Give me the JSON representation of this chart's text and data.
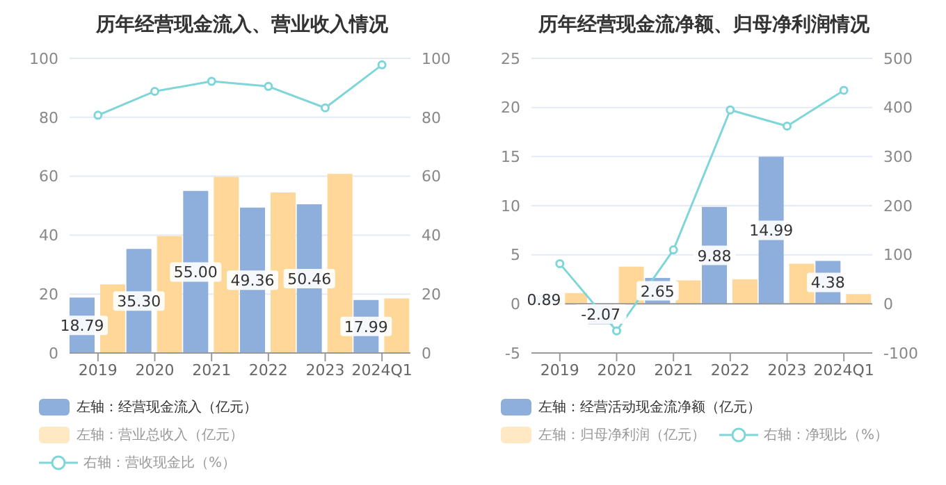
{
  "chart_data": [
    {
      "type": "bar",
      "title": "历年经营现金流入、营业收入情况",
      "categories": [
        "2019",
        "2020",
        "2021",
        "2022",
        "2023",
        "2024Q1"
      ],
      "series": [
        {
          "name": "左轴：经营现金流入（亿元）",
          "color": "#8eaedc",
          "values": [
            18.79,
            35.3,
            55.0,
            49.36,
            50.46,
            17.99
          ],
          "value_labels": [
            "18.79",
            "35.30",
            "55.00",
            "49.36",
            "50.46",
            "17.99"
          ]
        },
        {
          "name": "左轴：营业总收入（亿元）",
          "color": "#ffd899",
          "values": [
            23.3,
            39.7,
            59.8,
            54.5,
            60.8,
            18.5
          ]
        },
        {
          "name": "右轴：营收现金比（%）",
          "type": "line",
          "axis": "y2",
          "color": "#7fd6d9",
          "values": [
            80.7,
            88.8,
            92.2,
            90.5,
            83.2,
            97.8
          ]
        }
      ],
      "ylim": [
        0,
        100
      ],
      "yticks": [
        0,
        20,
        40,
        60,
        80,
        100
      ],
      "y2lim": [
        0,
        100
      ],
      "y2ticks": [
        0,
        20,
        40,
        60,
        80,
        100
      ],
      "grid": "y",
      "legend": "bottom",
      "marker": "circle"
    },
    {
      "type": "bar",
      "title": "历年经营现金流净额、归母净利润情况",
      "categories": [
        "2019",
        "2020",
        "2021",
        "2022",
        "2023",
        "2024Q1"
      ],
      "series": [
        {
          "name": "左轴：经营活动现金流净额（亿元）",
          "color": "#8eaedc",
          "values": [
            0.89,
            -2.07,
            2.65,
            9.88,
            14.99,
            4.38
          ],
          "value_labels": [
            "0.89",
            "-2.07",
            "2.65",
            "9.88",
            "14.99",
            "4.38"
          ]
        },
        {
          "name": "左轴：归母净利润（亿元）",
          "color": "#ffd899",
          "values": [
            1.1,
            3.8,
            2.4,
            2.5,
            4.1,
            1.0
          ]
        },
        {
          "name": "右轴：净现比（%）",
          "type": "line",
          "axis": "y2",
          "color": "#7fd6d9",
          "values": [
            82,
            -55,
            110,
            395,
            362,
            435
          ]
        }
      ],
      "ylim": [
        -5,
        25
      ],
      "yticks": [
        -5,
        0,
        5,
        10,
        15,
        20,
        25
      ],
      "y2lim": [
        -100,
        500
      ],
      "y2ticks": [
        -100,
        0,
        100,
        200,
        300,
        400,
        500
      ],
      "grid": "y",
      "legend": "bottom",
      "marker": "circle"
    }
  ]
}
